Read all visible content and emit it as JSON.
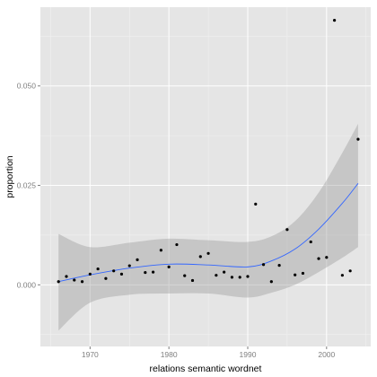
{
  "chart_data": {
    "type": "scatter",
    "xlabel": "relations semantic wordnet",
    "ylabel": "proportion",
    "xlim": [
      1963.7,
      2005.6
    ],
    "ylim": [
      -0.0155,
      0.0698
    ],
    "x_ticks": [
      1970,
      1980,
      1990,
      2000
    ],
    "y_ticks": [
      0.0,
      0.025,
      0.05
    ],
    "y_tick_labels": [
      "0.000",
      "0.025",
      "0.050"
    ],
    "grid": true,
    "colors": {
      "panel": "#e5e5e5",
      "grid_major": "#ffffff",
      "grid_minor": "#f2f2f2",
      "points": "#000000",
      "smooth_line": "#3366ff",
      "ribbon": "#999999"
    },
    "points": [
      {
        "x": 1966,
        "y": 0.0008
      },
      {
        "x": 1967,
        "y": 0.0021
      },
      {
        "x": 1968,
        "y": 0.0012
      },
      {
        "x": 1969,
        "y": 0.0008
      },
      {
        "x": 1970,
        "y": 0.0027
      },
      {
        "x": 1971,
        "y": 0.004
      },
      {
        "x": 1972,
        "y": 0.0016
      },
      {
        "x": 1973,
        "y": 0.0035
      },
      {
        "x": 1974,
        "y": 0.0027
      },
      {
        "x": 1975,
        "y": 0.0048
      },
      {
        "x": 1976,
        "y": 0.0063
      },
      {
        "x": 1977,
        "y": 0.0031
      },
      {
        "x": 1978,
        "y": 0.0032
      },
      {
        "x": 1979,
        "y": 0.0087
      },
      {
        "x": 1980,
        "y": 0.0045
      },
      {
        "x": 1981,
        "y": 0.0101
      },
      {
        "x": 1982,
        "y": 0.0023
      },
      {
        "x": 1983,
        "y": 0.0011
      },
      {
        "x": 1984,
        "y": 0.0071
      },
      {
        "x": 1985,
        "y": 0.0079
      },
      {
        "x": 1986,
        "y": 0.0024
      },
      {
        "x": 1987,
        "y": 0.0032
      },
      {
        "x": 1988,
        "y": 0.0019
      },
      {
        "x": 1989,
        "y": 0.0019
      },
      {
        "x": 1990,
        "y": 0.0021
      },
      {
        "x": 1991,
        "y": 0.0203
      },
      {
        "x": 1992,
        "y": 0.0051
      },
      {
        "x": 1993,
        "y": 0.0008
      },
      {
        "x": 1994,
        "y": 0.0049
      },
      {
        "x": 1995,
        "y": 0.0139
      },
      {
        "x": 1996,
        "y": 0.0025
      },
      {
        "x": 1997,
        "y": 0.0029
      },
      {
        "x": 1998,
        "y": 0.0108
      },
      {
        "x": 1999,
        "y": 0.0066
      },
      {
        "x": 2000,
        "y": 0.0069
      },
      {
        "x": 2001,
        "y": 0.0665
      },
      {
        "x": 2002,
        "y": 0.0024
      },
      {
        "x": 2003,
        "y": 0.0035
      },
      {
        "x": 2004,
        "y": 0.0366
      }
    ],
    "smooth": {
      "method": "loess",
      "x": [
        1966,
        1970,
        1975,
        1980,
        1985,
        1990,
        1993,
        1996,
        1999,
        2002,
        2004
      ],
      "y": [
        0.0008,
        0.0025,
        0.0042,
        0.0052,
        0.005,
        0.0045,
        0.006,
        0.009,
        0.014,
        0.0205,
        0.0255
      ],
      "lower": [
        -0.0115,
        -0.0045,
        -0.0025,
        -0.0022,
        -0.0022,
        -0.0032,
        -0.002,
        0.0,
        0.0032,
        0.0068,
        0.0095
      ],
      "upper": [
        0.0128,
        0.0095,
        0.0106,
        0.0116,
        0.0112,
        0.0108,
        0.0122,
        0.016,
        0.0232,
        0.0332,
        0.0405
      ]
    }
  }
}
